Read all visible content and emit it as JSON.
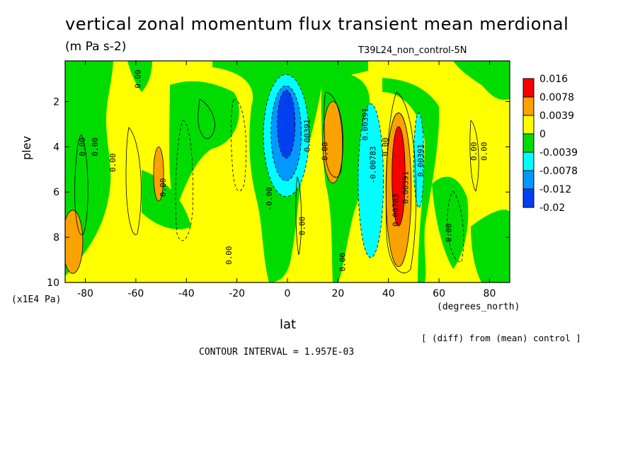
{
  "title": "vertical zonal momentum flux transient mean merdional",
  "units": "(m Pa s-2)",
  "dataset": "T39L24_non_control-5N",
  "note": "[ (diff) from (mean) control ]",
  "contour_interval": "CONTOUR INTERVAL = 1.957E-03",
  "colors": {
    "red": "#f70000",
    "orange": "#f9a200",
    "yellow": "#ffff00",
    "green": "#00dc00",
    "cyan": "#00ffff",
    "blue_mid": "#0099ff",
    "blue": "#0040f0"
  },
  "chart_data": {
    "type": "heatmap",
    "subtype": "filled-contour",
    "xlabel": "lat",
    "xunits": "(degrees_north)",
    "ylabel": "plev",
    "yunits": "(x1E4 Pa)",
    "xlim": [
      -88,
      88
    ],
    "ylim": [
      10,
      0.2
    ],
    "x_ticks": [
      -80,
      -60,
      -40,
      -20,
      0,
      20,
      40,
      60,
      80
    ],
    "y_ticks": [
      2,
      4,
      6,
      8,
      10
    ],
    "legend_levels": [
      "0.016",
      "0.0078",
      "0.0039",
      "0",
      "-0.0039",
      "-0.0078",
      "-0.012",
      "-0.02"
    ],
    "legend_colors": [
      "#f70000",
      "#f9a200",
      "#ffff00",
      "#00dc00",
      "#00ffff",
      "#0099ff",
      "#0040f0"
    ],
    "contour_labels": [
      {
        "text": "0.00",
        "lat": -81,
        "plev": 4.0
      },
      {
        "text": "0.00",
        "lat": -76,
        "plev": 4.0
      },
      {
        "text": "0.00",
        "lat": -69,
        "plev": 4.7
      },
      {
        "text": "0.00",
        "lat": -59,
        "plev": 1.0
      },
      {
        "text": "0.00",
        "lat": -49,
        "plev": 5.8
      },
      {
        "text": "0.00",
        "lat": -23,
        "plev": 8.8
      },
      {
        "text": "-0.00",
        "lat": -7,
        "plev": 6.3
      },
      {
        "text": "0.00391",
        "lat": 8,
        "plev": 3.5
      },
      {
        "text": "0.00",
        "lat": 6,
        "plev": 7.5
      },
      {
        "text": "0.00",
        "lat": 15,
        "plev": 4.2
      },
      {
        "text": "0.00",
        "lat": 22,
        "plev": 9.1
      },
      {
        "text": "0.00391",
        "lat": 31,
        "plev": 3.0
      },
      {
        "text": "-0.00783",
        "lat": 34,
        "plev": 4.8
      },
      {
        "text": "0.00",
        "lat": 39,
        "plev": 4.0
      },
      {
        "text": "0.00783",
        "lat": 43,
        "plev": 6.8
      },
      {
        "text": "0.00391",
        "lat": 47,
        "plev": 5.8
      },
      {
        "text": "0.00391",
        "lat": 53,
        "plev": 4.6
      },
      {
        "text": "0.00",
        "lat": 64,
        "plev": 7.8
      },
      {
        "text": "0.00",
        "lat": 74,
        "plev": 4.2
      },
      {
        "text": "0.00",
        "lat": 78,
        "plev": 4.2
      }
    ],
    "features": [
      {
        "sign": "pos",
        "level": 2,
        "lat": -85,
        "plev": 8.2,
        "rx": 4,
        "ry": 1.4
      },
      {
        "sign": "pos",
        "level": 2,
        "lat": -51,
        "plev": 5.2,
        "rx": 2,
        "ry": 1.2
      },
      {
        "sign": "pos",
        "level": 2,
        "lat": 18,
        "plev": 3.8,
        "rx": 4,
        "ry": 1.8
      },
      {
        "sign": "pos",
        "level": 2,
        "lat": 44,
        "plev": 5.9,
        "rx": 5,
        "ry": 3.4
      },
      {
        "sign": "pos",
        "level": 3,
        "lat": 44,
        "plev": 5.3,
        "rx": 2.6,
        "ry": 2.2
      },
      {
        "sign": "neg",
        "level": 1,
        "lat": -0.5,
        "plev": 3.5,
        "rx": 9,
        "ry": 2.7
      },
      {
        "sign": "neg",
        "level": 2,
        "lat": -0.5,
        "plev": 3.4,
        "rx": 6,
        "ry": 2.1
      },
      {
        "sign": "neg",
        "level": 3,
        "lat": -0.5,
        "plev": 3.0,
        "rx": 3.5,
        "ry": 1.5
      },
      {
        "sign": "neg",
        "level": 1,
        "lat": 33,
        "plev": 5.5,
        "rx": 5,
        "ry": 3.4
      },
      {
        "sign": "neg",
        "level": 1,
        "lat": 52,
        "plev": 4.6,
        "rx": 2,
        "ry": 2.1
      }
    ]
  }
}
